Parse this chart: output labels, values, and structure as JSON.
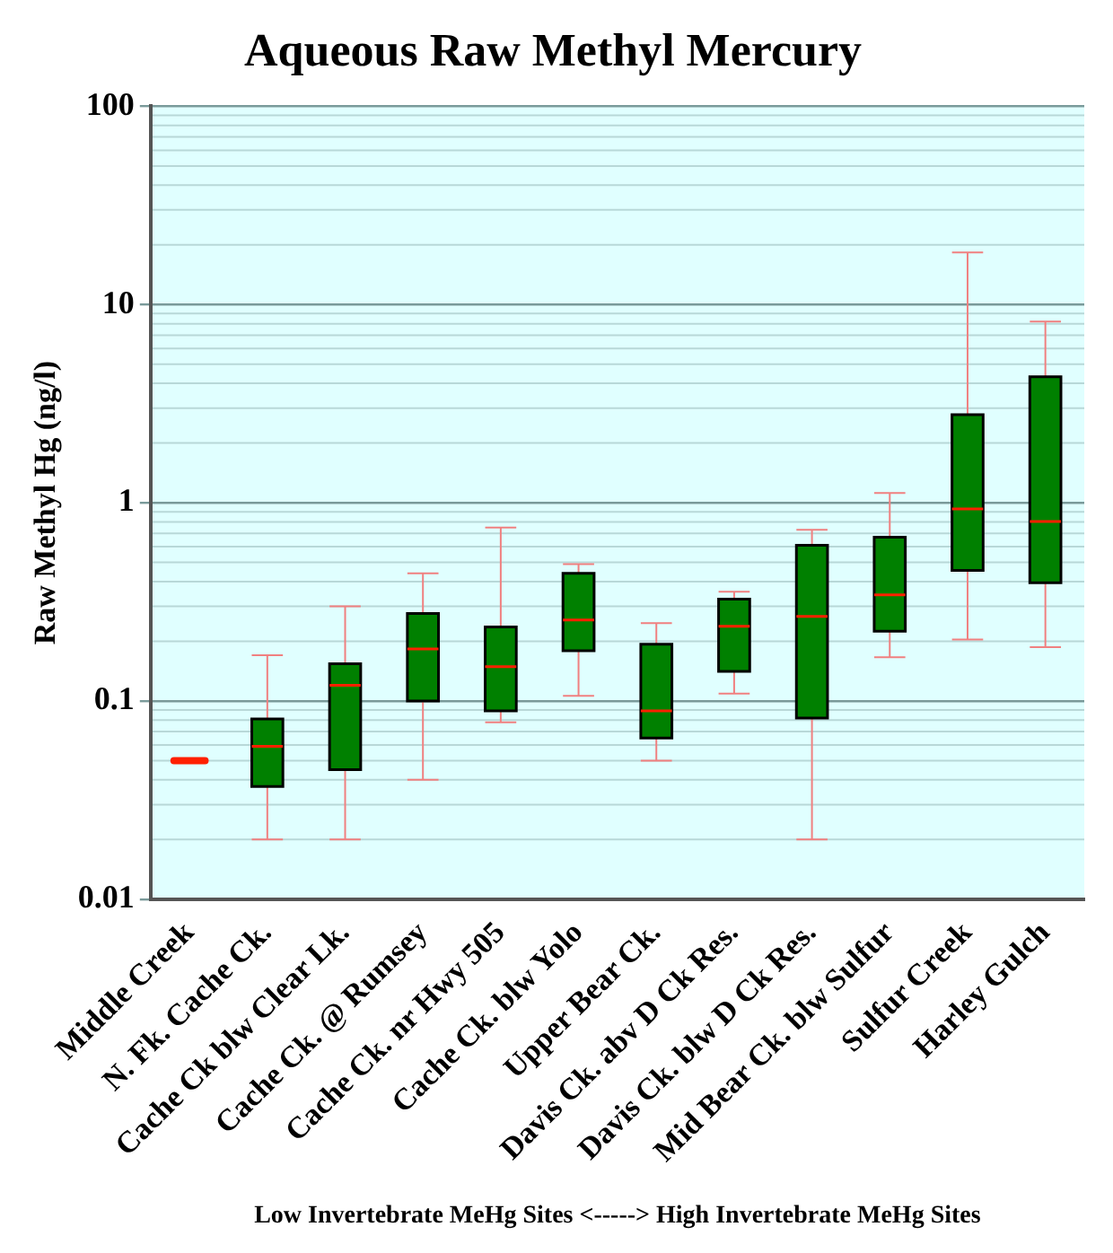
{
  "chart_data": {
    "type": "box",
    "title": "Aqueous Raw Methyl Mercury",
    "ylabel": "Raw Methyl Hg (ng/l)",
    "xlabel": "Low Invertebrate MeHg Sites <-----> High Invertebrate MeHg Sites",
    "categories": [
      "Middle Creek",
      "N. Fk. Cache Ck.",
      "Cache Ck blw Clear Lk.",
      "Cache Ck. @ Rumsey",
      "Cache Ck. nr Hwy 505",
      "Cache Ck. blw Yolo",
      "Upper Bear Ck.",
      "Davis Ck. abv D Ck Res.",
      "Davis Ck. blw D Ck Res.",
      "Mid Bear Ck. blw Sulfur",
      "Sulfur Creek",
      "Harley Gulch"
    ],
    "colors": [
      "#ff2000",
      "#008000",
      "#008000",
      "#008000",
      "#008000",
      "#008000",
      "#008000",
      "#008000",
      "#008000",
      "#008000",
      "#008000",
      "#008000"
    ],
    "boxes": [
      {
        "low": 0.05,
        "q1": 0.05,
        "median": 0.05,
        "q3": 0.05,
        "high": 0.05
      },
      {
        "low": 0.02,
        "q1": 0.037,
        "median": 0.059,
        "q3": 0.081,
        "high": 0.17
      },
      {
        "low": 0.02,
        "q1": 0.045,
        "median": 0.12,
        "q3": 0.154,
        "high": 0.3
      },
      {
        "low": 0.04,
        "q1": 0.1,
        "median": 0.183,
        "q3": 0.276,
        "high": 0.44
      },
      {
        "low": 0.078,
        "q1": 0.089,
        "median": 0.149,
        "q3": 0.236,
        "high": 0.75
      },
      {
        "low": 0.106,
        "q1": 0.179,
        "median": 0.256,
        "q3": 0.44,
        "high": 0.49
      },
      {
        "low": 0.05,
        "q1": 0.065,
        "median": 0.089,
        "q3": 0.193,
        "high": 0.247
      },
      {
        "low": 0.109,
        "q1": 0.141,
        "median": 0.238,
        "q3": 0.326,
        "high": 0.356
      },
      {
        "low": 0.02,
        "q1": 0.082,
        "median": 0.267,
        "q3": 0.61,
        "high": 0.73
      },
      {
        "low": 0.166,
        "q1": 0.225,
        "median": 0.343,
        "q3": 0.67,
        "high": 1.12
      },
      {
        "low": 0.204,
        "q1": 0.456,
        "median": 0.93,
        "q3": 2.78,
        "high": 18.3
      },
      {
        "low": 0.187,
        "q1": 0.395,
        "median": 0.805,
        "q3": 4.32,
        "high": 8.2
      }
    ],
    "log": "y",
    "ylim": [
      0.01,
      100
    ],
    "yticks": [
      0.01,
      0.1,
      1,
      10,
      100
    ],
    "grid": "y",
    "legend": false
  }
}
